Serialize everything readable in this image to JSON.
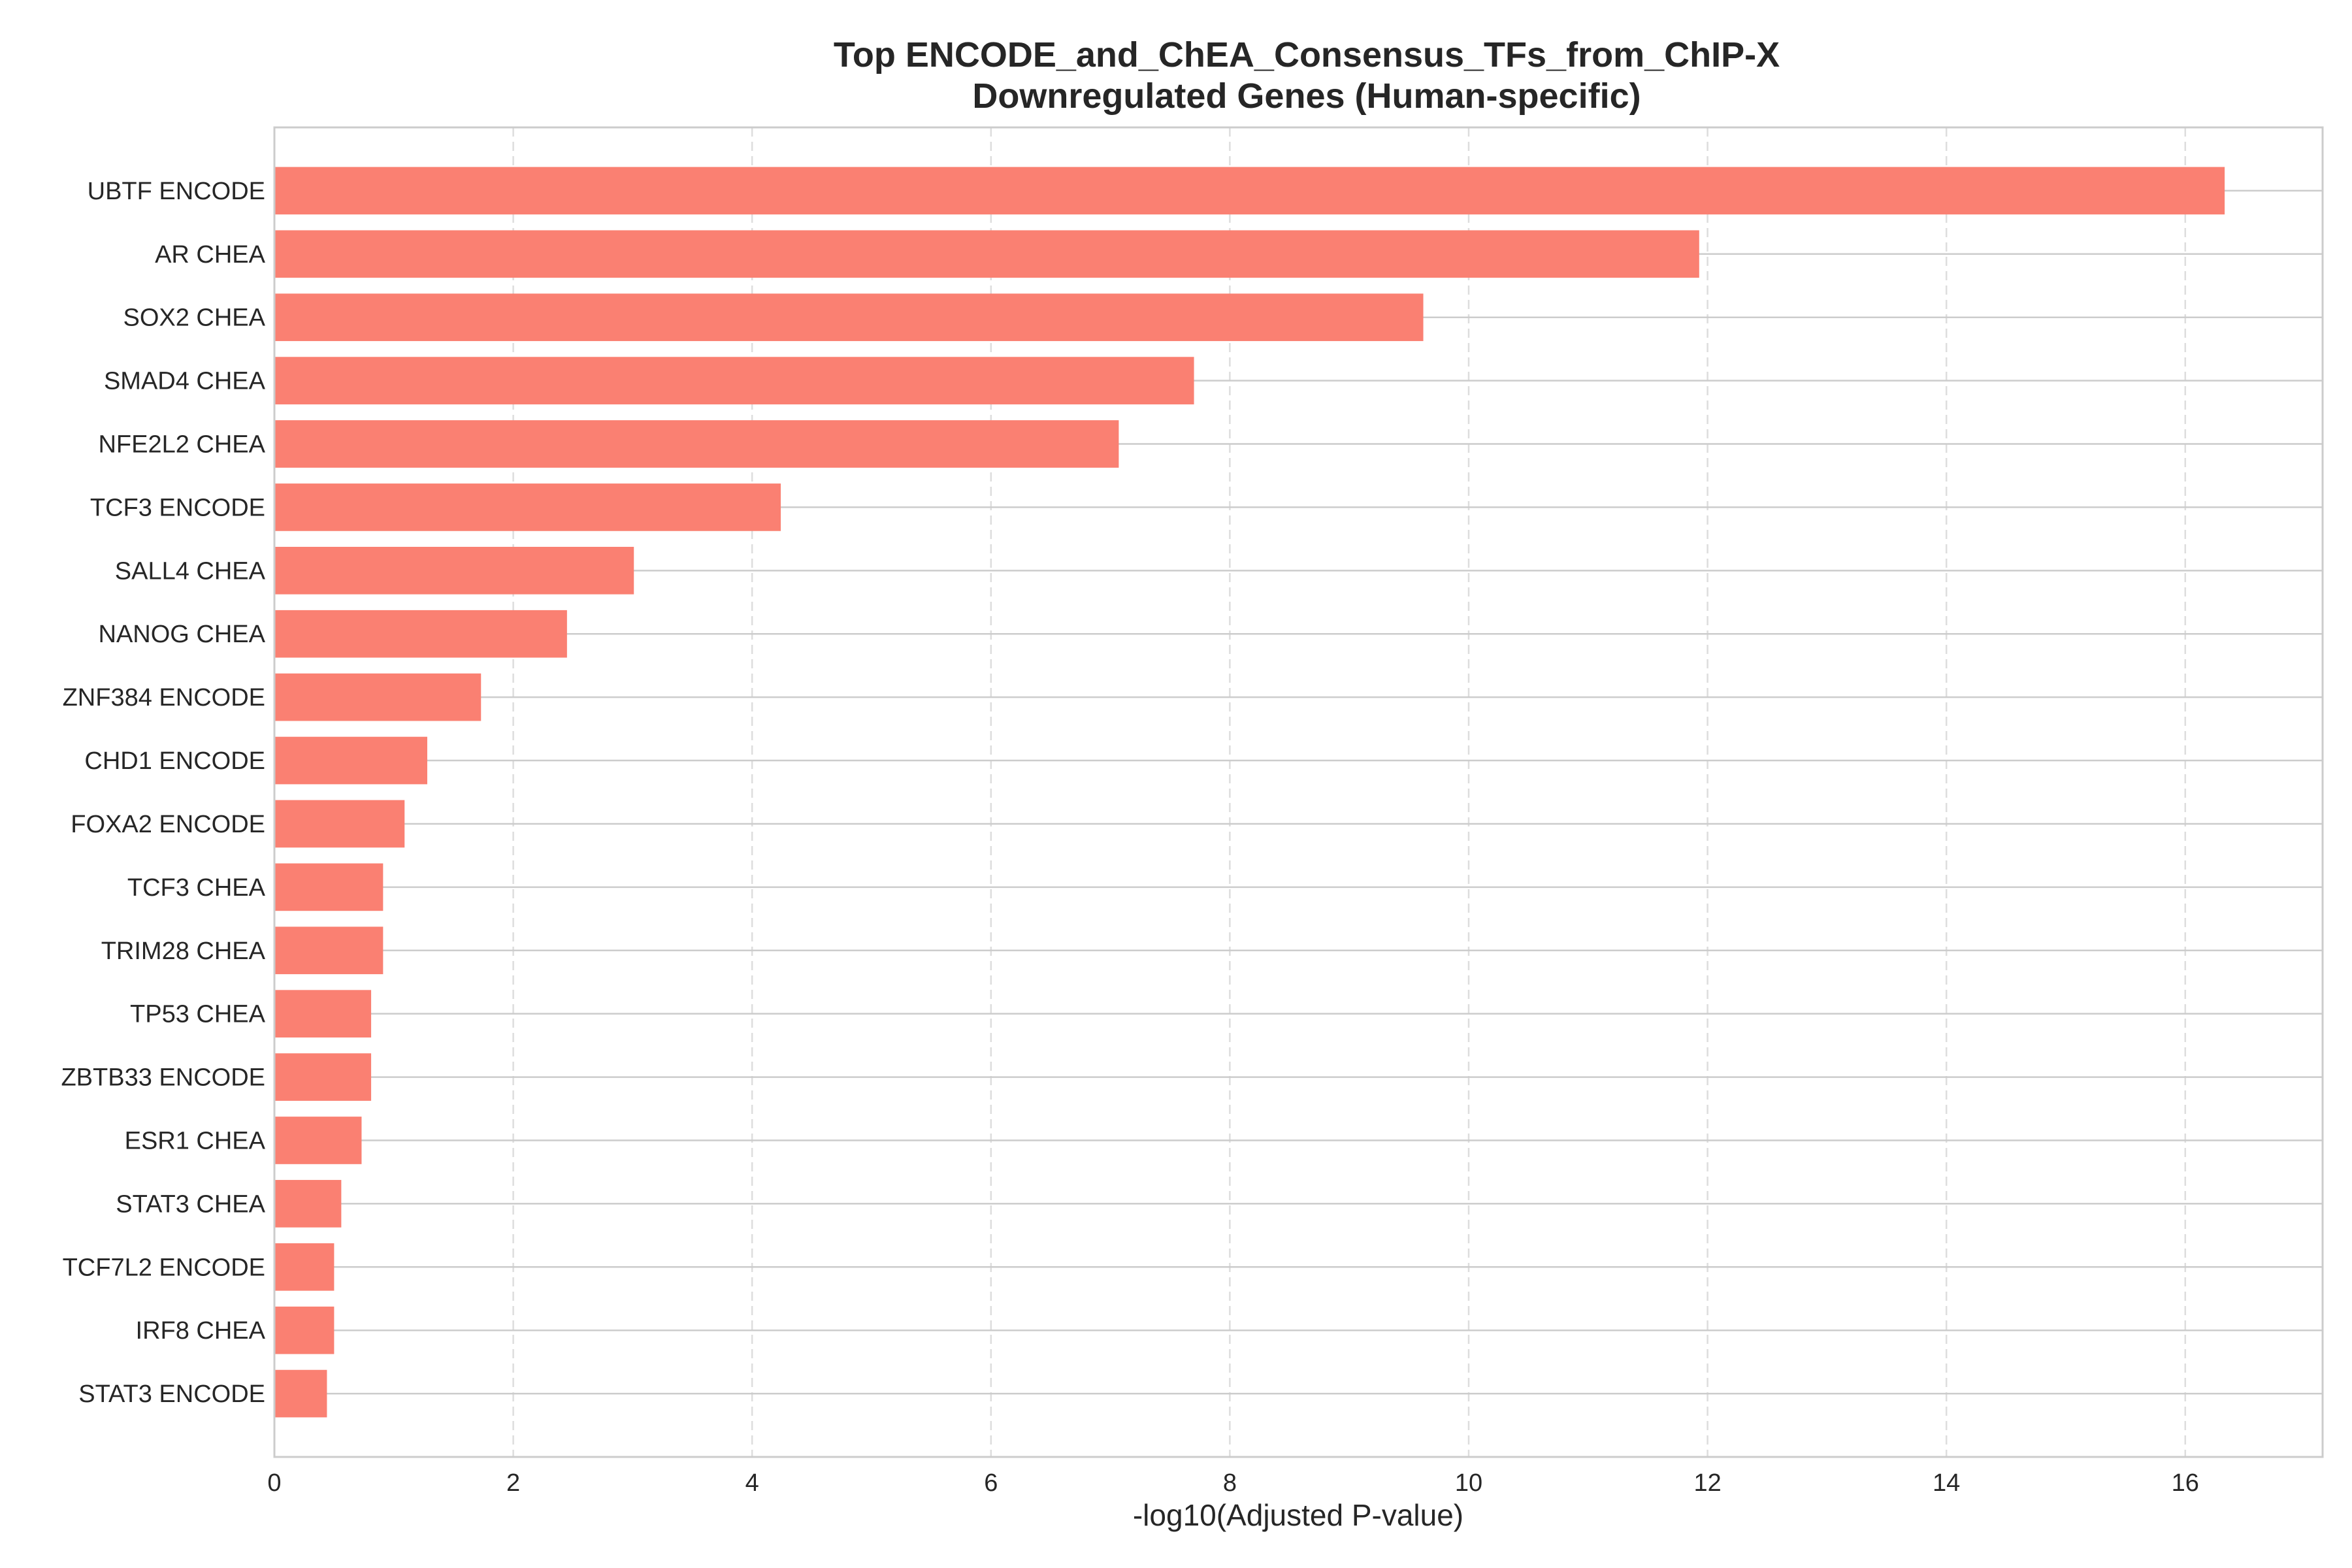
{
  "chart_data": {
    "type": "bar",
    "orientation": "horizontal",
    "title": "Top ENCODE_and_ChEA_Consensus_TFs_from_ChIP-X",
    "subtitle": "Downregulated Genes (Human-specific)",
    "xlabel": "-log10(Adjusted P-value)",
    "ylabel": "",
    "xlim": [
      0,
      17.15
    ],
    "xticks": [
      0,
      2,
      4,
      6,
      8,
      10,
      12,
      14,
      16
    ],
    "grid": true,
    "bar_color": "#fa8072",
    "categories": [
      "UBTF ENCODE",
      "AR CHEA",
      "SOX2 CHEA",
      "SMAD4 CHEA",
      "NFE2L2 CHEA",
      "TCF3 ENCODE",
      "SALL4 CHEA",
      "NANOG CHEA",
      "ZNF384 ENCODE",
      "CHD1 ENCODE",
      "FOXA2 ENCODE",
      "TCF3 CHEA",
      "TRIM28 CHEA",
      "TP53 CHEA",
      "ZBTB33 ENCODE",
      "ESR1 CHEA",
      "STAT3 CHEA",
      "TCF7L2 ENCODE",
      "IRF8 CHEA",
      "STAT3 ENCODE"
    ],
    "values": [
      16.33,
      11.93,
      9.62,
      7.7,
      7.07,
      4.24,
      3.01,
      2.45,
      1.73,
      1.28,
      1.09,
      0.91,
      0.91,
      0.81,
      0.81,
      0.73,
      0.56,
      0.5,
      0.5,
      0.44
    ]
  }
}
